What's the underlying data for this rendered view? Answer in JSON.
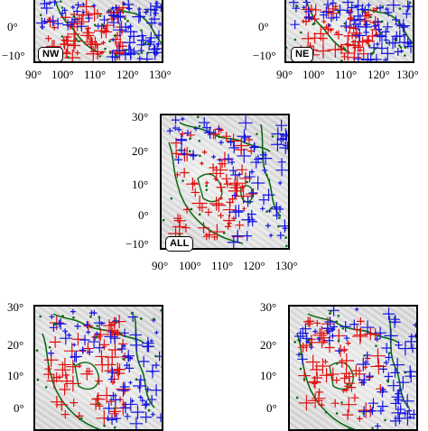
{
  "panels": {
    "nw": {
      "label": "NW",
      "x_ticks": [
        "90°",
        "100°",
        "110°",
        "120°",
        "130°"
      ],
      "y_ticks": [
        "0°",
        "−10°"
      ]
    },
    "ne": {
      "label": "NE",
      "x_ticks": [
        "90°",
        "100°",
        "110°",
        "120°",
        "130°"
      ],
      "y_ticks": [
        "0°",
        "−10°"
      ]
    },
    "all": {
      "label": "ALL",
      "x_ticks": [
        "90°",
        "100°",
        "110°",
        "120°",
        "130°"
      ],
      "y_ticks": [
        "30°",
        "20°",
        "10°",
        "0°",
        "−10°"
      ]
    },
    "sw": {
      "y_ticks": [
        "30°",
        "20°",
        "10°",
        "0°"
      ]
    },
    "se": {
      "y_ticks": [
        "30°",
        "20°",
        "10°",
        "0°"
      ]
    }
  },
  "colors": {
    "series_a": "#e01010",
    "series_b": "#1515e0",
    "coastline": "#0a6a12",
    "marker_purple": "#9020b0"
  }
}
